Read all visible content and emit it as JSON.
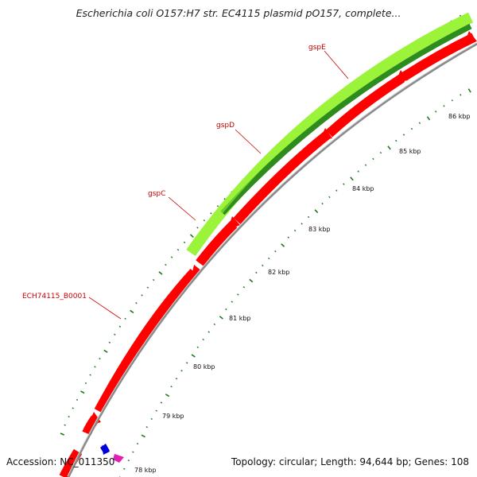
{
  "title": "Escherichia coli O157:H7 str. EC4115 plasmid pO157, complete...",
  "footer": {
    "accession": "Accession: NC_011350",
    "summary": "Topology: circular; Length: 94,644 bp; Genes: 108"
  },
  "genes": [
    {
      "label": "gspE"
    },
    {
      "label": "gspD"
    },
    {
      "label": "gspC"
    },
    {
      "label": "ECH74115_B0001"
    }
  ],
  "kbp_labels": [
    "86 kbp",
    "85 kbp",
    "84 kbp",
    "83 kbp",
    "82 kbp",
    "81 kbp",
    "80 kbp",
    "79 kbp",
    "78 kbp"
  ],
  "colors": {
    "gene_forward": "#ff0000",
    "gc_light": "#9bf33a",
    "gc_dark": "#2e8b1e",
    "backbone": "#8a8a8a",
    "tick": "#1a7a1a",
    "label_red": "#cc0000",
    "feature_blue": "#0000dd",
    "feature_magenta": "#e020b0"
  }
}
